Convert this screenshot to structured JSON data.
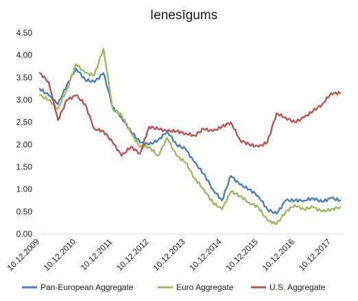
{
  "chart_data": {
    "type": "line",
    "title": "Ienesīgums",
    "xlabel": "",
    "ylabel": "",
    "ylim": [
      0,
      4.5
    ],
    "yticks": [
      "0.00",
      "0.50",
      "1.00",
      "1.50",
      "2.00",
      "2.50",
      "3.00",
      "3.50",
      "4.00",
      "4.50"
    ],
    "xticks": [
      "10.12.2009",
      "10.12.2010",
      "10.12.2011",
      "10.12.2012",
      "10.12.2013",
      "10.12.2014",
      "10.12.2015",
      "10.12.2016",
      "10.12.2017"
    ],
    "x": [
      "10.12.2009",
      "10.03.2010",
      "10.06.2010",
      "10.09.2010",
      "10.12.2010",
      "10.03.2011",
      "10.06.2011",
      "10.09.2011",
      "10.12.2011",
      "10.03.2012",
      "10.06.2012",
      "10.09.2012",
      "10.12.2012",
      "10.03.2013",
      "10.06.2013",
      "10.09.2013",
      "10.12.2013",
      "10.03.2014",
      "10.06.2014",
      "10.09.2014",
      "10.12.2014",
      "10.03.2015",
      "10.06.2015",
      "10.09.2015",
      "10.12.2015",
      "10.03.2016",
      "10.06.2016",
      "10.09.2016",
      "10.12.2016",
      "10.03.2017",
      "10.06.2017",
      "10.09.2017",
      "10.12.2017",
      "10.03.2018"
    ],
    "series": [
      {
        "name": "Pan-European Aggregate",
        "color": "#4a7ebb",
        "values": [
          3.25,
          3.1,
          2.9,
          3.35,
          3.7,
          3.45,
          3.4,
          3.6,
          2.85,
          2.6,
          2.3,
          2.05,
          2.0,
          2.1,
          2.3,
          2.0,
          1.9,
          1.6,
          1.35,
          1.0,
          0.75,
          1.3,
          1.1,
          1.0,
          0.85,
          0.55,
          0.45,
          0.75,
          0.75,
          0.75,
          0.8,
          0.72,
          0.8,
          0.75
        ]
      },
      {
        "name": "Euro Aggregate",
        "color": "#9bbb59",
        "values": [
          3.1,
          3.0,
          2.8,
          3.25,
          3.8,
          3.6,
          3.55,
          4.15,
          2.8,
          2.65,
          2.25,
          1.95,
          1.95,
          1.75,
          2.15,
          1.75,
          1.6,
          1.25,
          1.0,
          0.7,
          0.55,
          0.95,
          0.85,
          0.7,
          0.6,
          0.3,
          0.22,
          0.5,
          0.65,
          0.55,
          0.6,
          0.5,
          0.55,
          0.6
        ]
      },
      {
        "name": "U.S. Aggregate",
        "color": "#c0504d",
        "values": [
          3.6,
          3.4,
          2.55,
          3.0,
          3.1,
          2.9,
          2.35,
          2.3,
          2.05,
          1.75,
          1.95,
          1.8,
          2.4,
          2.35,
          2.3,
          2.3,
          2.25,
          2.2,
          2.35,
          2.3,
          2.4,
          2.5,
          2.1,
          2.0,
          1.95,
          2.05,
          2.7,
          2.6,
          2.5,
          2.6,
          2.75,
          2.9,
          3.15,
          3.15
        ]
      }
    ],
    "legend": "bottom",
    "grid": false
  }
}
